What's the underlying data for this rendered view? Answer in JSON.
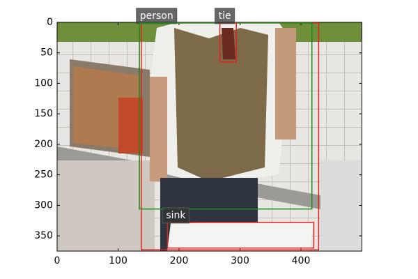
{
  "chart_data": {
    "type": "image-detections",
    "xlim": [
      0,
      500
    ],
    "ylim": [
      375,
      0
    ],
    "xticks": [
      0,
      100,
      200,
      300,
      400
    ],
    "yticks": [
      0,
      50,
      100,
      150,
      200,
      250,
      300,
      350
    ],
    "boxes": [
      {
        "label": "person",
        "color": "#e02020",
        "x0": 138,
        "y0": 1,
        "x1": 429,
        "y1": 373
      },
      {
        "color": "#1a8a1a",
        "x0": 135,
        "y0": 1,
        "x1": 418,
        "y1": 306
      },
      {
        "label": "tie",
        "color": "#e02020",
        "x0": 267,
        "y0": 1,
        "x1": 294,
        "y1": 65
      },
      {
        "label": "sink",
        "color": "#e02020",
        "x0": 181,
        "y0": 328,
        "x1": 421,
        "y1": 370
      }
    ]
  }
}
